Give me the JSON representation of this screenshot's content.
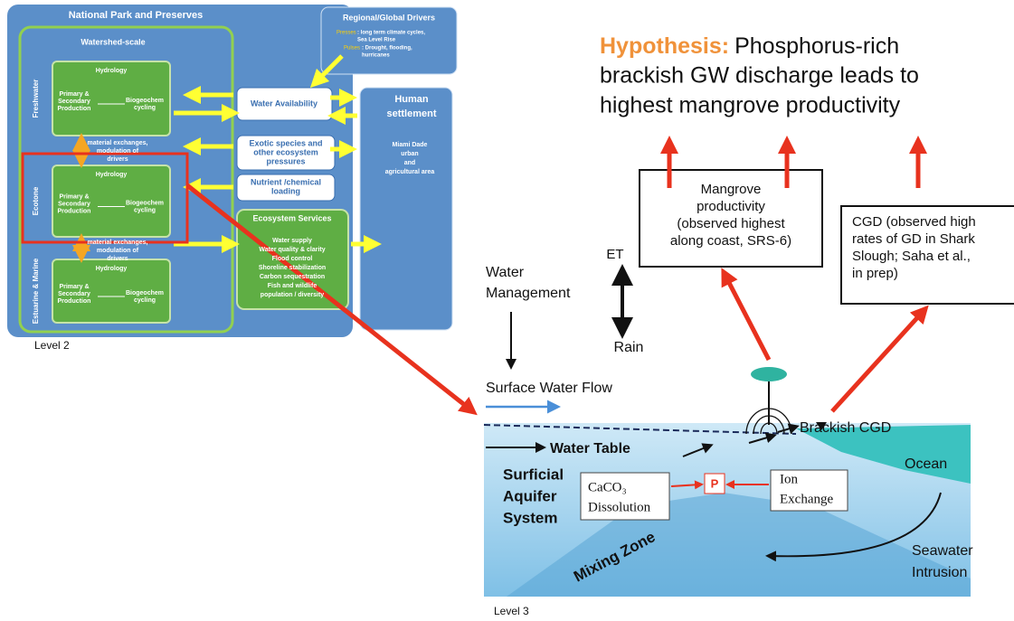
{
  "level2": {
    "title": "National Park and Preserves",
    "watershed": "Watershed-scale",
    "boxes": [
      {
        "side": "Freshwater",
        "hydrology": "Hydrology",
        "production": [
          "Primary &",
          "Secondary",
          "Production"
        ],
        "biogeochem": [
          "Biogeochem",
          "cycling"
        ]
      },
      {
        "side": "Ecotone",
        "hydrology": "Hydrology",
        "production": [
          "Primary &",
          "Secondary",
          "Production"
        ],
        "biogeochem": [
          "Biogeochem",
          "cycling"
        ]
      },
      {
        "side": "Estuarine & Marine",
        "hydrology": "Hydrology",
        "production": [
          "Primary &",
          "Secondary",
          "Production"
        ],
        "biogeochem": [
          "Biogeochem",
          "cycling"
        ]
      }
    ],
    "exchanges": [
      [
        "material exchanges,",
        "modulation of",
        "drivers"
      ],
      [
        "material exchanges,",
        "modulation of",
        "drivers"
      ]
    ],
    "drivers": {
      "title": "Regional/Global Drivers",
      "presses": "Presses",
      "presses_text": [
        ": long term climate cycles,",
        "Sea Level Rise"
      ],
      "pulses": "Pulses",
      "pulses_text": [
        ": Drought, flooding,",
        "hurricanes"
      ]
    },
    "pressures": [
      "Water Availability",
      [
        "Exotic species and",
        "other ecosystem",
        "pressures"
      ],
      [
        "Nutrient /chemical",
        "loading"
      ]
    ],
    "services": {
      "title": "Ecosystem Services",
      "items": [
        "Water supply",
        "Water quality & clarity",
        "Flood control",
        "Shoreline stabilization",
        "Carbon sequestration",
        "Fish and wildlife",
        "population / diversity"
      ]
    },
    "human": {
      "title": [
        "Human",
        "settlement"
      ],
      "text": [
        "Miami Dade",
        "urban",
        "and",
        "agricultural area"
      ]
    },
    "caption": "Level 2"
  },
  "level3": {
    "hypothesis_label": "Hypothesis:",
    "hypothesis": [
      "Phosphorus-rich",
      "brackish GW discharge leads to",
      "highest mangrove productivity"
    ],
    "mangrove": [
      "Mangrove",
      "productivity",
      "(observed highest",
      "along coast, SRS-6)"
    ],
    "cgd": [
      "CGD (observed high",
      "rates of GD in Shark",
      "Slough; Saha et al.,",
      "in prep)"
    ],
    "et": "ET",
    "rain": "Rain",
    "management": [
      "Water",
      "Management"
    ],
    "surface_flow": "Surface Water Flow",
    "water_table": "Water Table",
    "aquifer": [
      "Surficial",
      "Aquifer",
      "System"
    ],
    "caco3": [
      "CaCO₃",
      "Dissolution"
    ],
    "p": "P",
    "ion": [
      "Ion",
      "Exchange"
    ],
    "brackish": "Brackish CGD",
    "ocean": "Ocean",
    "seawater": [
      "Seawater",
      "Intrusion"
    ],
    "mixing": "Mixing Zone",
    "caption": "Level 3"
  }
}
